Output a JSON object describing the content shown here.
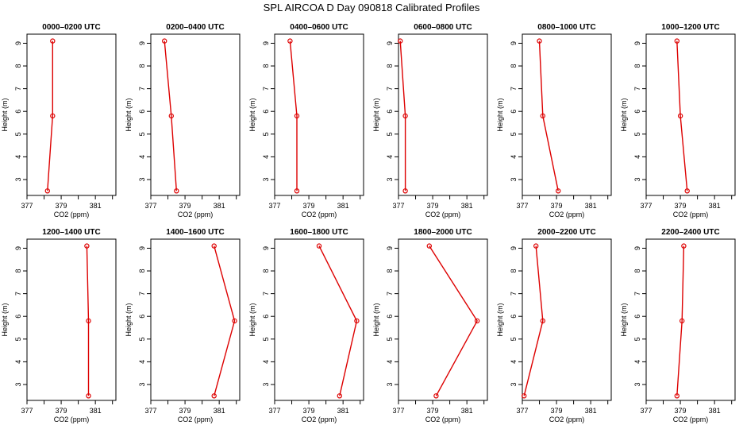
{
  "page_title": "SPL AIRCOA D  Day 090818  Calibrated Profiles",
  "colors": {
    "series": "#dd0000",
    "axis": "#000000"
  },
  "chart_data": [
    {
      "type": "line",
      "title": "0000–0200 UTC",
      "xlabel": "CO2 (ppm)",
      "ylabel": "Height (m)",
      "xlim": [
        377,
        382.2
      ],
      "ylim": [
        2.3,
        9.4
      ],
      "xticks": [
        377,
        379,
        381
      ],
      "yticks": [
        3,
        4,
        5,
        6,
        7,
        8,
        9
      ],
      "series": [
        {
          "x": [
            378.2,
            378.5,
            378.5
          ],
          "y": [
            2.5,
            5.8,
            9.1
          ]
        }
      ]
    },
    {
      "type": "line",
      "title": "0200–0400 UTC",
      "xlabel": "CO2 (ppm)",
      "ylabel": "Height (m)",
      "xlim": [
        377,
        382.2
      ],
      "ylim": [
        2.3,
        9.4
      ],
      "xticks": [
        377,
        379,
        381
      ],
      "yticks": [
        3,
        4,
        5,
        6,
        7,
        8,
        9
      ],
      "series": [
        {
          "x": [
            378.5,
            378.2,
            377.8
          ],
          "y": [
            2.5,
            5.8,
            9.1
          ]
        }
      ]
    },
    {
      "type": "line",
      "title": "0400–0600 UTC",
      "xlabel": "CO2 (ppm)",
      "ylabel": "Height (m)",
      "xlim": [
        377,
        382.2
      ],
      "ylim": [
        2.3,
        9.4
      ],
      "xticks": [
        377,
        379,
        381
      ],
      "yticks": [
        3,
        4,
        5,
        6,
        7,
        8,
        9
      ],
      "series": [
        {
          "x": [
            378.3,
            378.3,
            377.9
          ],
          "y": [
            2.5,
            5.8,
            9.1
          ]
        }
      ]
    },
    {
      "type": "line",
      "title": "0600–0800 UTC",
      "xlabel": "CO2 (ppm)",
      "ylabel": "Height (m)",
      "xlim": [
        377,
        382.2
      ],
      "ylim": [
        2.3,
        9.4
      ],
      "xticks": [
        377,
        379,
        381
      ],
      "yticks": [
        3,
        4,
        5,
        6,
        7,
        8,
        9
      ],
      "series": [
        {
          "x": [
            377.4,
            377.4,
            377.1
          ],
          "y": [
            2.5,
            5.8,
            9.1
          ]
        }
      ]
    },
    {
      "type": "line",
      "title": "0800–1000 UTC",
      "xlabel": "CO2 (ppm)",
      "ylabel": "Height (m)",
      "xlim": [
        377,
        382.2
      ],
      "ylim": [
        2.3,
        9.4
      ],
      "xticks": [
        377,
        379,
        381
      ],
      "yticks": [
        3,
        4,
        5,
        6,
        7,
        8,
        9
      ],
      "series": [
        {
          "x": [
            379.1,
            378.2,
            378.0
          ],
          "y": [
            2.5,
            5.8,
            9.1
          ]
        }
      ]
    },
    {
      "type": "line",
      "title": "1000–1200 UTC",
      "xlabel": "CO2 (ppm)",
      "ylabel": "Height (m)",
      "xlim": [
        377,
        382.2
      ],
      "ylim": [
        2.3,
        9.4
      ],
      "xticks": [
        377,
        379,
        381
      ],
      "yticks": [
        3,
        4,
        5,
        6,
        7,
        8,
        9
      ],
      "series": [
        {
          "x": [
            379.4,
            379.0,
            378.8
          ],
          "y": [
            2.5,
            5.8,
            9.1
          ]
        }
      ]
    },
    {
      "type": "line",
      "title": "1200–1400 UTC",
      "xlabel": "CO2 (ppm)",
      "ylabel": "Height (m)",
      "xlim": [
        377,
        382.2
      ],
      "ylim": [
        2.3,
        9.4
      ],
      "xticks": [
        377,
        379,
        381
      ],
      "yticks": [
        3,
        4,
        5,
        6,
        7,
        8,
        9
      ],
      "series": [
        {
          "x": [
            380.6,
            380.6,
            380.5
          ],
          "y": [
            2.5,
            5.8,
            9.1
          ]
        }
      ]
    },
    {
      "type": "line",
      "title": "1400–1600 UTC",
      "xlabel": "CO2 (ppm)",
      "ylabel": "Height (m)",
      "xlim": [
        377,
        382.2
      ],
      "ylim": [
        2.3,
        9.4
      ],
      "xticks": [
        377,
        379,
        381
      ],
      "yticks": [
        3,
        4,
        5,
        6,
        7,
        8,
        9
      ],
      "series": [
        {
          "x": [
            380.7,
            381.9,
            380.7
          ],
          "y": [
            2.5,
            5.8,
            9.1
          ]
        }
      ]
    },
    {
      "type": "line",
      "title": "1600–1800 UTC",
      "xlabel": "CO2 (ppm)",
      "ylabel": "Height (m)",
      "xlim": [
        377,
        382.2
      ],
      "ylim": [
        2.3,
        9.4
      ],
      "xticks": [
        377,
        379,
        381
      ],
      "yticks": [
        3,
        4,
        5,
        6,
        7,
        8,
        9
      ],
      "series": [
        {
          "x": [
            380.8,
            381.8,
            379.6
          ],
          "y": [
            2.5,
            5.8,
            9.1
          ]
        }
      ]
    },
    {
      "type": "line",
      "title": "1800–2000 UTC",
      "xlabel": "CO2 (ppm)",
      "ylabel": "Height (m)",
      "xlim": [
        377,
        382.2
      ],
      "ylim": [
        2.3,
        9.4
      ],
      "xticks": [
        377,
        379,
        381
      ],
      "yticks": [
        3,
        4,
        5,
        6,
        7,
        8,
        9
      ],
      "series": [
        {
          "x": [
            379.2,
            381.6,
            378.8
          ],
          "y": [
            2.5,
            5.8,
            9.1
          ]
        }
      ]
    },
    {
      "type": "line",
      "title": "2000–2200 UTC",
      "xlabel": "CO2 (ppm)",
      "ylabel": "Height (m)",
      "xlim": [
        377,
        382.2
      ],
      "ylim": [
        2.3,
        9.4
      ],
      "xticks": [
        377,
        379,
        381
      ],
      "yticks": [
        3,
        4,
        5,
        6,
        7,
        8,
        9
      ],
      "series": [
        {
          "x": [
            377.1,
            378.2,
            377.8
          ],
          "y": [
            2.5,
            5.8,
            9.1
          ]
        }
      ]
    },
    {
      "type": "line",
      "title": "2200–2400 UTC",
      "xlabel": "CO2 (ppm)",
      "ylabel": "Height (m)",
      "xlim": [
        377,
        382.2
      ],
      "ylim": [
        2.3,
        9.4
      ],
      "xticks": [
        377,
        379,
        381
      ],
      "yticks": [
        3,
        4,
        5,
        6,
        7,
        8,
        9
      ],
      "series": [
        {
          "x": [
            378.8,
            379.1,
            379.2
          ],
          "y": [
            2.5,
            5.8,
            9.1
          ]
        }
      ]
    }
  ]
}
